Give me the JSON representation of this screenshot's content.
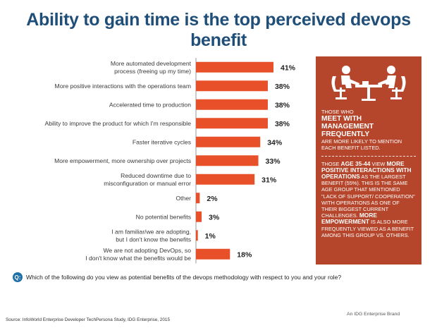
{
  "title": "Ability to gain time is the top perceived devops benefit",
  "chart_data": {
    "type": "bar",
    "orientation": "horizontal",
    "categories": [
      [
        "More automated development",
        "process (freeing up my time)"
      ],
      [
        "More positive interactions with the operations team"
      ],
      [
        "Accelerated time to production"
      ],
      [
        "Ability to improve the product for which I'm responsible"
      ],
      [
        "Faster iterative cycles"
      ],
      [
        "More empowerment, more ownership over projects"
      ],
      [
        "Reduced downtime due to",
        "misconfiguration or manual error"
      ],
      [
        "Other"
      ],
      [
        "No potential benefits"
      ],
      [
        "I am familiar/we are adopting,",
        "but I don't know the benefits"
      ],
      [
        "We are  not adopting DevOps, so",
        "I don't know what the benefits would be"
      ]
    ],
    "values": [
      41,
      38,
      38,
      38,
      34,
      33,
      31,
      2,
      3,
      1,
      18
    ],
    "value_labels": [
      "41%",
      "38%",
      "38%",
      "38%",
      "34%",
      "33%",
      "31%",
      "2%",
      "3%",
      "1%",
      "18%"
    ],
    "xlim": [
      0,
      50
    ],
    "bar_color": "#e8502a",
    "grid": false,
    "legend": "none",
    "xlabel": "",
    "ylabel": ""
  },
  "sidebar": {
    "bg_color": "#b5452b",
    "illustration_icon": "meeting-people-icon",
    "p1_a": "Those who",
    "p1_big": "meet with management frequently",
    "p1_b": "are more likely to mention each benefit listed.",
    "p2_a": "Those",
    "p2_b1": "age 35-44",
    "p2_c": "view",
    "p2_b2": "more positive interactions with operations",
    "p2_d": "as the largest benefit (55%). This is the same age group that mentioned \"lack of support/ cooperation\" with operations as one of their biggest current challenges.",
    "p2_b3": "More empowerment",
    "p2_e": "is also more frequently viewed as a benefit among this group vs. others."
  },
  "question": {
    "icon_label": "Q:",
    "text": "Which of the following do you view as potential benefits of the devops methodology with respect to you and your role?"
  },
  "brand": "An IDG Enterprise Brand",
  "source": "Source: InfoWorld Enterprise Developer TechPersona Study, IDG Enterprise, 2015"
}
